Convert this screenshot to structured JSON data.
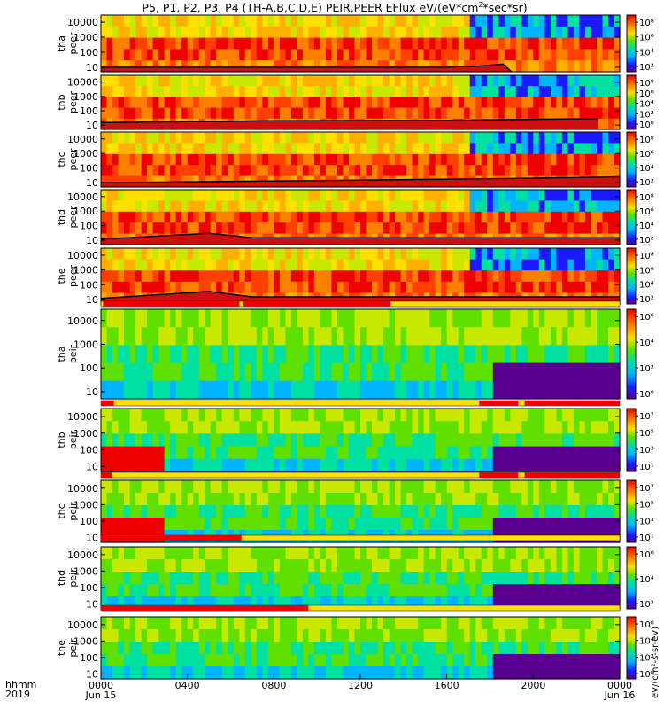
{
  "chart_data": {
    "type": "heatmap",
    "title": "P5, P1, P2, P3, P4 (TH-A,B,C,D,E) PEIR,PEER EFlux eV/(eV*cm²*sec*sr)",
    "title_plain": "P5, P1, P2, P3, P4 (TH-A,B,C,D,E) PEIR,PEER EFlux eV/(eV*cm",
    "title_sup": "2",
    "title_tail": "*sec*sr)",
    "x_axis": {
      "row1_label": "hhmm",
      "row2_label": "2019",
      "ticks": [
        {
          "t": 0,
          "label": "0000",
          "date": "Jun 15"
        },
        {
          "t": 4,
          "label": "0400",
          "date": ""
        },
        {
          "t": 8,
          "label": "0800",
          "date": ""
        },
        {
          "t": 12,
          "label": "1200",
          "date": ""
        },
        {
          "t": 16,
          "label": "1600",
          "date": ""
        },
        {
          "t": 20,
          "label": "2000",
          "date": ""
        },
        {
          "t": 24,
          "label": "0000",
          "date": "Jun 16"
        }
      ],
      "range_hours": [
        0,
        24
      ]
    },
    "y_axis": {
      "scale": "log",
      "range": [
        5,
        30000
      ],
      "ticks": [
        "10",
        "100",
        "1000",
        "10000"
      ]
    },
    "colorbar_label": "eV/(cm²-s-sr-eV)",
    "panels": [
      {
        "id": "tha-peer",
        "label1": "tha",
        "label2": "peer",
        "cbar": [
          "10⁸",
          "10⁶",
          "10⁴",
          "10²"
        ],
        "bar": false,
        "spacecraft_floor": [
          [
            0,
            10
          ],
          [
            16,
            10
          ],
          [
            17.5,
            12
          ],
          [
            18.6,
            16
          ],
          [
            19,
            5
          ]
        ]
      },
      {
        "id": "thb-peer",
        "label1": "thb",
        "label2": "peer",
        "cbar": [
          "10⁸",
          "10⁶",
          "10⁴",
          "10²",
          "10⁰"
        ],
        "bar": false,
        "spacecraft_floor": [
          [
            0,
            15
          ],
          [
            8,
            20
          ],
          [
            16,
            22
          ],
          [
            23,
            28
          ]
        ]
      },
      {
        "id": "thc-peer",
        "label1": "thc",
        "label2": "peer",
        "cbar": [
          "10⁸",
          "10⁶",
          "10⁴",
          "10²"
        ],
        "bar": false,
        "spacecraft_floor": [
          [
            0,
            10
          ],
          [
            10,
            14
          ],
          [
            20,
            20
          ],
          [
            24,
            25
          ]
        ]
      },
      {
        "id": "thd-peer",
        "label1": "thd",
        "label2": "peer",
        "cbar": [
          "10⁸",
          "10⁶",
          "10⁴",
          "10²"
        ],
        "bar": false,
        "spacecraft_floor": [
          [
            0,
            12
          ],
          [
            5,
            30
          ],
          [
            7,
            15
          ],
          [
            24,
            15
          ]
        ]
      },
      {
        "id": "the-peer",
        "label1": "the",
        "label2": "peer",
        "cbar": [
          "10⁸",
          "10⁶",
          "10⁴",
          "10²"
        ],
        "bar": false,
        "spacecraft_floor": [
          [
            0,
            12
          ],
          [
            5,
            35
          ],
          [
            7,
            15
          ],
          [
            24,
            15
          ]
        ]
      },
      {
        "id": "tha-peir",
        "label1": "tha",
        "label2": "peir",
        "cbar": [
          "10⁶",
          "10⁴",
          "10²",
          "10⁰"
        ],
        "bar": true,
        "bar_red": [
          [
            0.1,
            6.4
          ],
          [
            6.6,
            13.4
          ]
        ]
      },
      {
        "id": "thb-peir",
        "label1": "thb",
        "label2": "peir",
        "cbar": [
          "10⁷",
          "10⁵",
          "10³",
          "10¹"
        ],
        "bar": true,
        "bar_red": [
          [
            0,
            0.6
          ],
          [
            17.5,
            19.3
          ],
          [
            19.6,
            24
          ]
        ]
      },
      {
        "id": "thc-peir",
        "label1": "thc",
        "label2": "peir",
        "cbar": [
          "10⁷",
          "10⁵",
          "10³",
          "10¹"
        ],
        "bar": true,
        "bar_red": [
          [
            0,
            0.5
          ],
          [
            17.5,
            19.3
          ],
          [
            19.6,
            24
          ]
        ]
      },
      {
        "id": "thd-peir",
        "label1": "thd",
        "label2": "peir",
        "cbar": [
          "10⁶",
          "10⁴",
          "10²"
        ],
        "bar": true,
        "bar_red": [
          [
            0,
            6.5
          ]
        ]
      },
      {
        "id": "the-peir",
        "label1": "the",
        "label2": "peir",
        "cbar": [
          "10⁶",
          "10⁴",
          "10²",
          "10⁰"
        ],
        "bar": true,
        "bar_red": [
          [
            0,
            9.6
          ]
        ]
      }
    ]
  }
}
